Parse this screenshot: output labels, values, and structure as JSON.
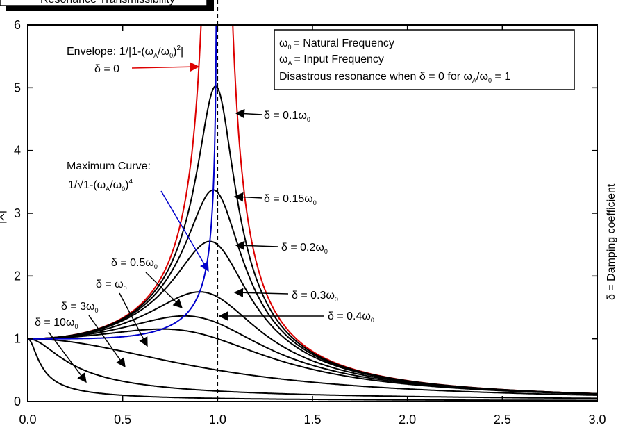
{
  "title_box": {
    "text": "Resonance Transmissibility"
  },
  "right_label": "δ = Damping coefficient",
  "y_label_fragment": "|X|",
  "legend": {
    "line1_symbol": "ω",
    "line1_sub": "0",
    "line1_text": "= Natural Frequency",
    "line2_symbol": "ω",
    "line2_sub": "A",
    "line2_text": "= Input Frequency",
    "line3_pre": "Disastrous  resonance when δ = 0 for ω",
    "line3_sub1": "A",
    "line3_mid": "/ω",
    "line3_sub2": "0",
    "line3_post": " = 1"
  },
  "envelope_label": {
    "line1_pre": "Envelope: 1/|1-(ω",
    "line1_sub1": "A",
    "line1_mid": "/ω",
    "line1_sub2": "0",
    "line1_post": ")",
    "line1_sup": "2",
    "line1_end": "|",
    "line2": "δ = 0",
    "color": "#dd0000"
  },
  "max_curve_label": {
    "line1": "Maximum Curve:",
    "line2_pre": "1/√1-(ω",
    "line2_sub1": "A",
    "line2_mid": "/ω",
    "line2_sub2": "0",
    "line2_post": ")",
    "line2_sup": "4",
    "color": "#0000cc"
  },
  "curve_labels": [
    {
      "pre": "δ = 0.1ω",
      "sub": "0"
    },
    {
      "pre": "δ = 0.15ω",
      "sub": "0"
    },
    {
      "pre": "δ = 0.2ω",
      "sub": "0"
    },
    {
      "pre": "δ = 0.3ω",
      "sub": "0"
    },
    {
      "pre": "δ = 0.4ω",
      "sub": "0"
    },
    {
      "pre": "δ = 0.5ω",
      "sub": "0"
    },
    {
      "pre": "δ = ω",
      "sub": "0"
    },
    {
      "pre": "δ = 3ω",
      "sub": "0"
    },
    {
      "pre": "δ = 10ω",
      "sub": "0"
    }
  ],
  "chart_data": {
    "type": "line",
    "xlim": [
      0,
      3.0
    ],
    "ylim": [
      0,
      6
    ],
    "x_ticks": [
      "0.0",
      "0.5",
      "1.0",
      "1.5",
      "2.0",
      "2.5",
      "3.0"
    ],
    "y_ticks": [
      "0",
      "1",
      "2",
      "3",
      "4",
      "5",
      "6"
    ],
    "x_tick_values": [
      0,
      0.5,
      1.0,
      1.5,
      2.0,
      2.5,
      3.0
    ],
    "y_tick_values": [
      0,
      1,
      2,
      3,
      4,
      5,
      6
    ],
    "grid": false,
    "reference_line": {
      "x": 1.0,
      "style": "dashed"
    },
    "formula": "T(r) = 1/sqrt((1-r^2)^2 + (2*zeta*r)^2), r = ωA/ω0",
    "series": [
      {
        "name": "δ = 0",
        "zeta": 0,
        "color": "#dd0000"
      },
      {
        "name": "δ = 0.1ω0",
        "zeta": 0.1,
        "color": "#000000"
      },
      {
        "name": "δ = 0.15ω0",
        "zeta": 0.15,
        "color": "#000000"
      },
      {
        "name": "δ = 0.2ω0",
        "zeta": 0.2,
        "color": "#000000"
      },
      {
        "name": "δ = 0.3ω0",
        "zeta": 0.3,
        "color": "#000000"
      },
      {
        "name": "δ = 0.4ω0",
        "zeta": 0.4,
        "color": "#000000"
      },
      {
        "name": "δ = 0.5ω0",
        "zeta": 0.5,
        "color": "#000000"
      },
      {
        "name": "δ = ω0",
        "zeta": 1,
        "color": "#000000"
      },
      {
        "name": "δ = 3ω0",
        "zeta": 3,
        "color": "#000000"
      },
      {
        "name": "δ = 10ω0",
        "zeta": 10,
        "color": "#000000"
      },
      {
        "name": "Maximum Curve",
        "kind": "maximum",
        "color": "#0000cc"
      }
    ]
  }
}
